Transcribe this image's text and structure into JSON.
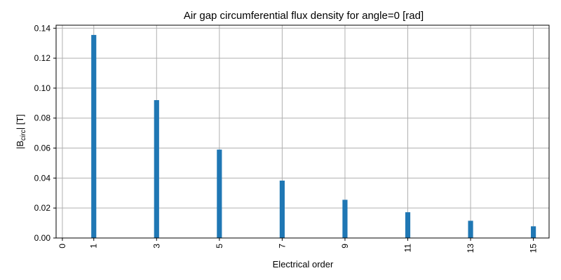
{
  "chart_data": {
    "type": "bar",
    "title": "Air gap circumferential flux density for angle=0 [rad]",
    "xlabel": "Electrical order",
    "ylabel_parts": {
      "main": "|B",
      "sub": "circ",
      "unit": "| [T]"
    },
    "x_ticks": [
      0,
      1,
      3,
      5,
      7,
      9,
      11,
      13,
      15
    ],
    "x_tick_labels": [
      "0",
      "1",
      "3",
      "5",
      "7",
      "9",
      "11",
      "13",
      "15"
    ],
    "y_ticks": [
      0.0,
      0.02,
      0.04,
      0.06,
      0.08,
      0.1,
      0.12,
      0.14
    ],
    "y_tick_labels": [
      "0.00",
      "0.02",
      "0.04",
      "0.06",
      "0.08",
      "0.10",
      "0.12",
      "0.14"
    ],
    "xlim": [
      -0.2,
      15.5
    ],
    "ylim": [
      0,
      0.142
    ],
    "bar_width_data": 0.16,
    "series": [
      {
        "x": [
          1,
          3,
          5,
          7,
          9,
          11,
          13,
          15
        ],
        "values": [
          0.1355,
          0.092,
          0.059,
          0.0383,
          0.0255,
          0.0172,
          0.0115,
          0.0078
        ]
      }
    ],
    "bar_color": "#1f77b4",
    "grid": true
  }
}
